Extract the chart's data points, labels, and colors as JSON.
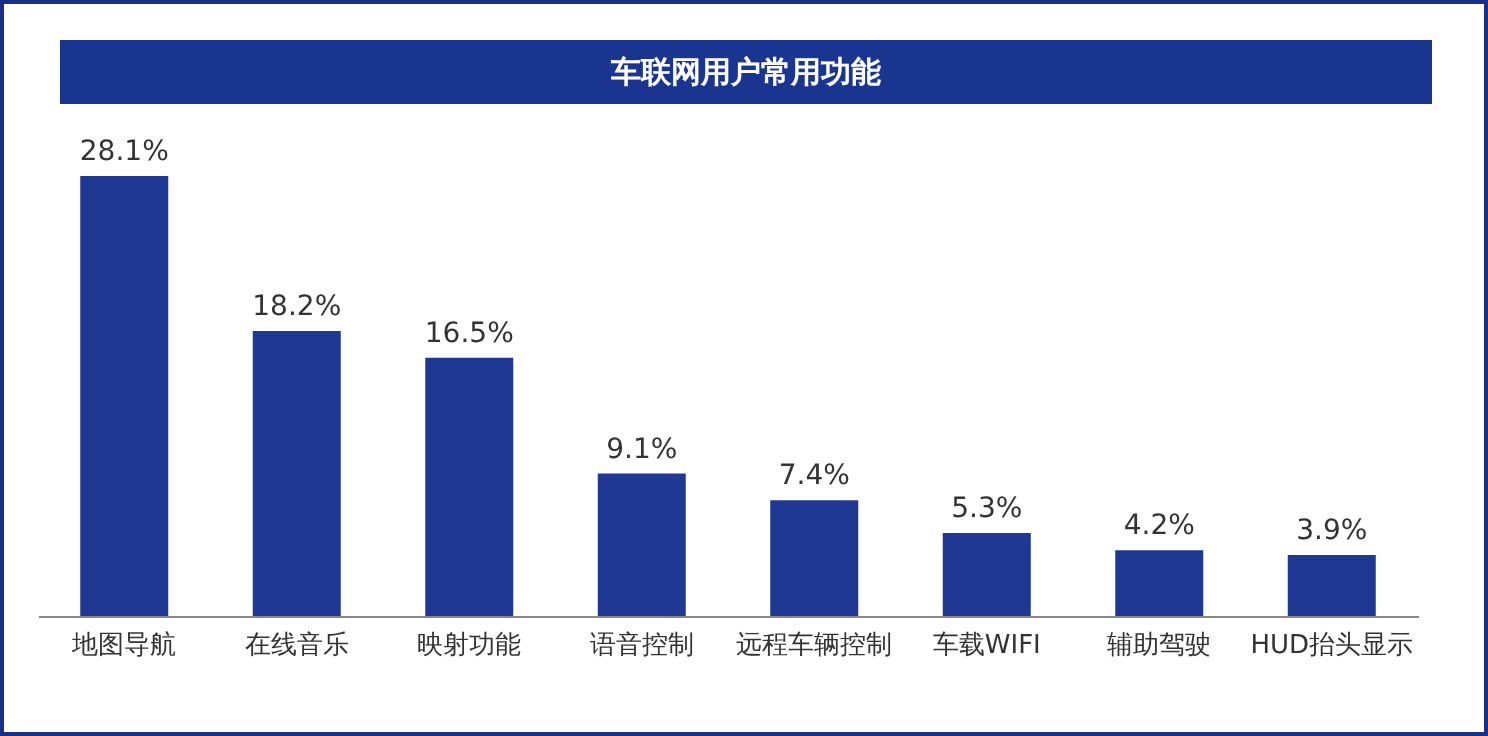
{
  "chart_data": {
    "type": "bar",
    "title": "车联网用户常用功能",
    "categories": [
      "地图导航",
      "在线音乐",
      "映射功能",
      "语音控制",
      "远程车辆控制",
      "车载WIFI",
      "辅助驾驶",
      "HUD抬头显示"
    ],
    "values": [
      28.1,
      18.2,
      16.5,
      9.1,
      7.4,
      5.3,
      4.2,
      3.9
    ],
    "value_labels": [
      "28.1%",
      "18.2%",
      "16.5%",
      "9.1%",
      "7.4%",
      "5.3%",
      "4.2%",
      "3.9%"
    ],
    "color": "#1f3893",
    "tick_labels": "x"
  }
}
